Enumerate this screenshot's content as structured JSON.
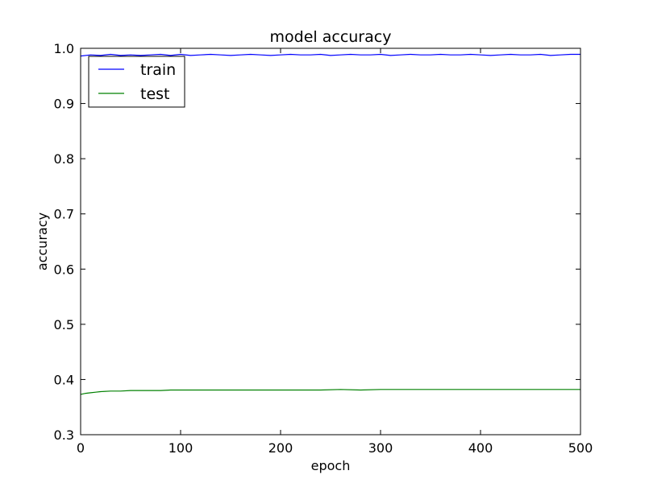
{
  "chart_data": {
    "type": "line",
    "title": "model accuracy",
    "xlabel": "epoch",
    "ylabel": "accuracy",
    "xlim": [
      0,
      500
    ],
    "ylim": [
      0.3,
      1.0
    ],
    "xticks": [
      0,
      100,
      200,
      300,
      400,
      500
    ],
    "yticks": [
      0.3,
      0.4,
      0.5,
      0.6,
      0.7,
      0.8,
      0.9,
      1.0
    ],
    "xtick_labels": [
      "0",
      "100",
      "200",
      "300",
      "400",
      "500"
    ],
    "ytick_labels": [
      "0.3",
      "0.4",
      "0.5",
      "0.6",
      "0.7",
      "0.8",
      "0.9",
      "1.0"
    ],
    "grid": false,
    "legend_position": "top-left",
    "series": [
      {
        "name": "train",
        "color": "#0000ff",
        "x": [
          0,
          10,
          20,
          30,
          40,
          50,
          60,
          70,
          80,
          90,
          100,
          110,
          120,
          130,
          140,
          150,
          160,
          170,
          180,
          190,
          200,
          210,
          220,
          230,
          240,
          250,
          260,
          270,
          280,
          290,
          300,
          310,
          320,
          330,
          340,
          350,
          360,
          370,
          380,
          390,
          400,
          410,
          420,
          430,
          440,
          450,
          460,
          470,
          480,
          490,
          500
        ],
        "y": [
          0.986,
          0.988,
          0.987,
          0.989,
          0.987,
          0.988,
          0.987,
          0.988,
          0.989,
          0.987,
          0.989,
          0.987,
          0.988,
          0.989,
          0.988,
          0.987,
          0.988,
          0.989,
          0.988,
          0.987,
          0.988,
          0.989,
          0.988,
          0.988,
          0.989,
          0.987,
          0.988,
          0.989,
          0.988,
          0.988,
          0.989,
          0.987,
          0.988,
          0.989,
          0.988,
          0.988,
          0.989,
          0.988,
          0.988,
          0.989,
          0.988,
          0.987,
          0.988,
          0.989,
          0.988,
          0.988,
          0.989,
          0.987,
          0.988,
          0.989,
          0.989
        ]
      },
      {
        "name": "test",
        "color": "#008000",
        "x": [
          0,
          5,
          10,
          15,
          20,
          30,
          40,
          50,
          60,
          70,
          80,
          90,
          100,
          120,
          140,
          160,
          180,
          200,
          220,
          240,
          260,
          280,
          300,
          320,
          340,
          360,
          380,
          400,
          420,
          440,
          460,
          480,
          500
        ],
        "y": [
          0.373,
          0.375,
          0.376,
          0.377,
          0.378,
          0.379,
          0.379,
          0.38,
          0.38,
          0.38,
          0.38,
          0.381,
          0.381,
          0.381,
          0.381,
          0.381,
          0.381,
          0.381,
          0.381,
          0.381,
          0.382,
          0.381,
          0.382,
          0.382,
          0.382,
          0.382,
          0.382,
          0.382,
          0.382,
          0.382,
          0.382,
          0.382,
          0.382
        ]
      }
    ]
  }
}
